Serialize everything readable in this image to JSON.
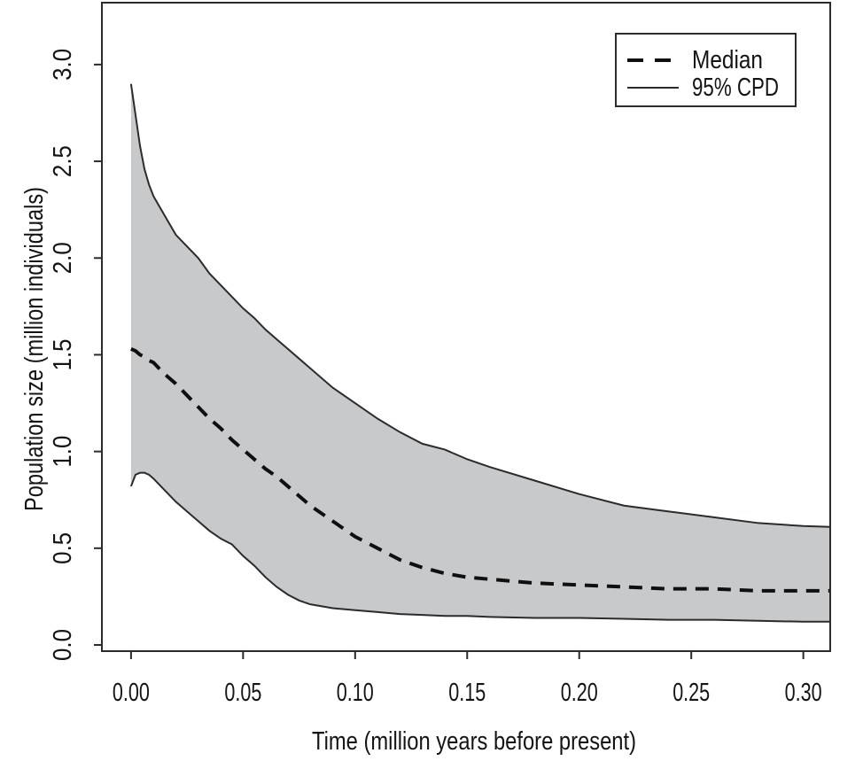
{
  "chart_data": {
    "type": "area",
    "title": "",
    "xlabel": "Time (million years before present)",
    "ylabel": "Population size (million individuals)",
    "xlim": [
      -0.013,
      0.312
    ],
    "ylim": [
      -0.032,
      3.32
    ],
    "grid": false,
    "x": [
      0.0,
      0.002,
      0.004,
      0.006,
      0.008,
      0.01,
      0.015,
      0.02,
      0.025,
      0.03,
      0.035,
      0.04,
      0.045,
      0.05,
      0.055,
      0.06,
      0.065,
      0.07,
      0.075,
      0.08,
      0.09,
      0.1,
      0.11,
      0.12,
      0.13,
      0.14,
      0.15,
      0.16,
      0.18,
      0.2,
      0.22,
      0.24,
      0.26,
      0.28,
      0.3,
      0.312
    ],
    "series": [
      {
        "name": "Median",
        "style": "dashed",
        "values": [
          1.53,
          1.52,
          1.5,
          1.49,
          1.47,
          1.46,
          1.4,
          1.35,
          1.29,
          1.23,
          1.17,
          1.12,
          1.06,
          1.01,
          0.96,
          0.91,
          0.87,
          0.82,
          0.77,
          0.72,
          0.64,
          0.56,
          0.5,
          0.44,
          0.4,
          0.37,
          0.35,
          0.34,
          0.32,
          0.31,
          0.3,
          0.29,
          0.29,
          0.28,
          0.28,
          0.28
        ]
      },
      {
        "name": "95% CPD upper",
        "style": "solid",
        "values": [
          2.9,
          2.74,
          2.58,
          2.46,
          2.38,
          2.32,
          2.22,
          2.12,
          2.06,
          2.0,
          1.92,
          1.86,
          1.8,
          1.74,
          1.69,
          1.63,
          1.58,
          1.53,
          1.48,
          1.43,
          1.33,
          1.25,
          1.17,
          1.1,
          1.04,
          1.01,
          0.96,
          0.92,
          0.85,
          0.78,
          0.72,
          0.69,
          0.66,
          0.63,
          0.615,
          0.61
        ]
      },
      {
        "name": "95% CPD lower",
        "style": "solid",
        "values": [
          0.82,
          0.88,
          0.89,
          0.89,
          0.88,
          0.86,
          0.8,
          0.74,
          0.69,
          0.64,
          0.59,
          0.55,
          0.52,
          0.46,
          0.41,
          0.35,
          0.3,
          0.26,
          0.23,
          0.21,
          0.19,
          0.18,
          0.17,
          0.16,
          0.155,
          0.15,
          0.15,
          0.145,
          0.14,
          0.14,
          0.135,
          0.13,
          0.13,
          0.125,
          0.12,
          0.12
        ]
      }
    ],
    "band": {
      "upper_series": 1,
      "lower_series": 2
    },
    "x_ticks": [
      {
        "label": "0.00",
        "value": 0.0
      },
      {
        "label": "0.05",
        "value": 0.05
      },
      {
        "label": "0.10",
        "value": 0.1
      },
      {
        "label": "0.15",
        "value": 0.15
      },
      {
        "label": "0.20",
        "value": 0.2
      },
      {
        "label": "0.25",
        "value": 0.25
      },
      {
        "label": "0.30",
        "value": 0.3
      }
    ],
    "y_ticks": [
      {
        "label": "0.0",
        "value": 0.0
      },
      {
        "label": "0.5",
        "value": 0.5
      },
      {
        "label": "1.0",
        "value": 1.0
      },
      {
        "label": "1.5",
        "value": 1.5
      },
      {
        "label": "2.0",
        "value": 2.0
      },
      {
        "label": "2.5",
        "value": 2.5
      },
      {
        "label": "3.0",
        "value": 3.0
      }
    ],
    "legend": {
      "position": "top-right",
      "entries": [
        {
          "label": "Median",
          "style": "dashed"
        },
        {
          "label": "95% CPD",
          "style": "solid"
        }
      ]
    },
    "colors": {
      "background": "#ffffff",
      "band_fill": "#c8c9ca",
      "cpd_line": "#2b2b2b",
      "median_line": "#0f0f0f",
      "axis": "#2b2b2b",
      "text": "#141414"
    }
  }
}
